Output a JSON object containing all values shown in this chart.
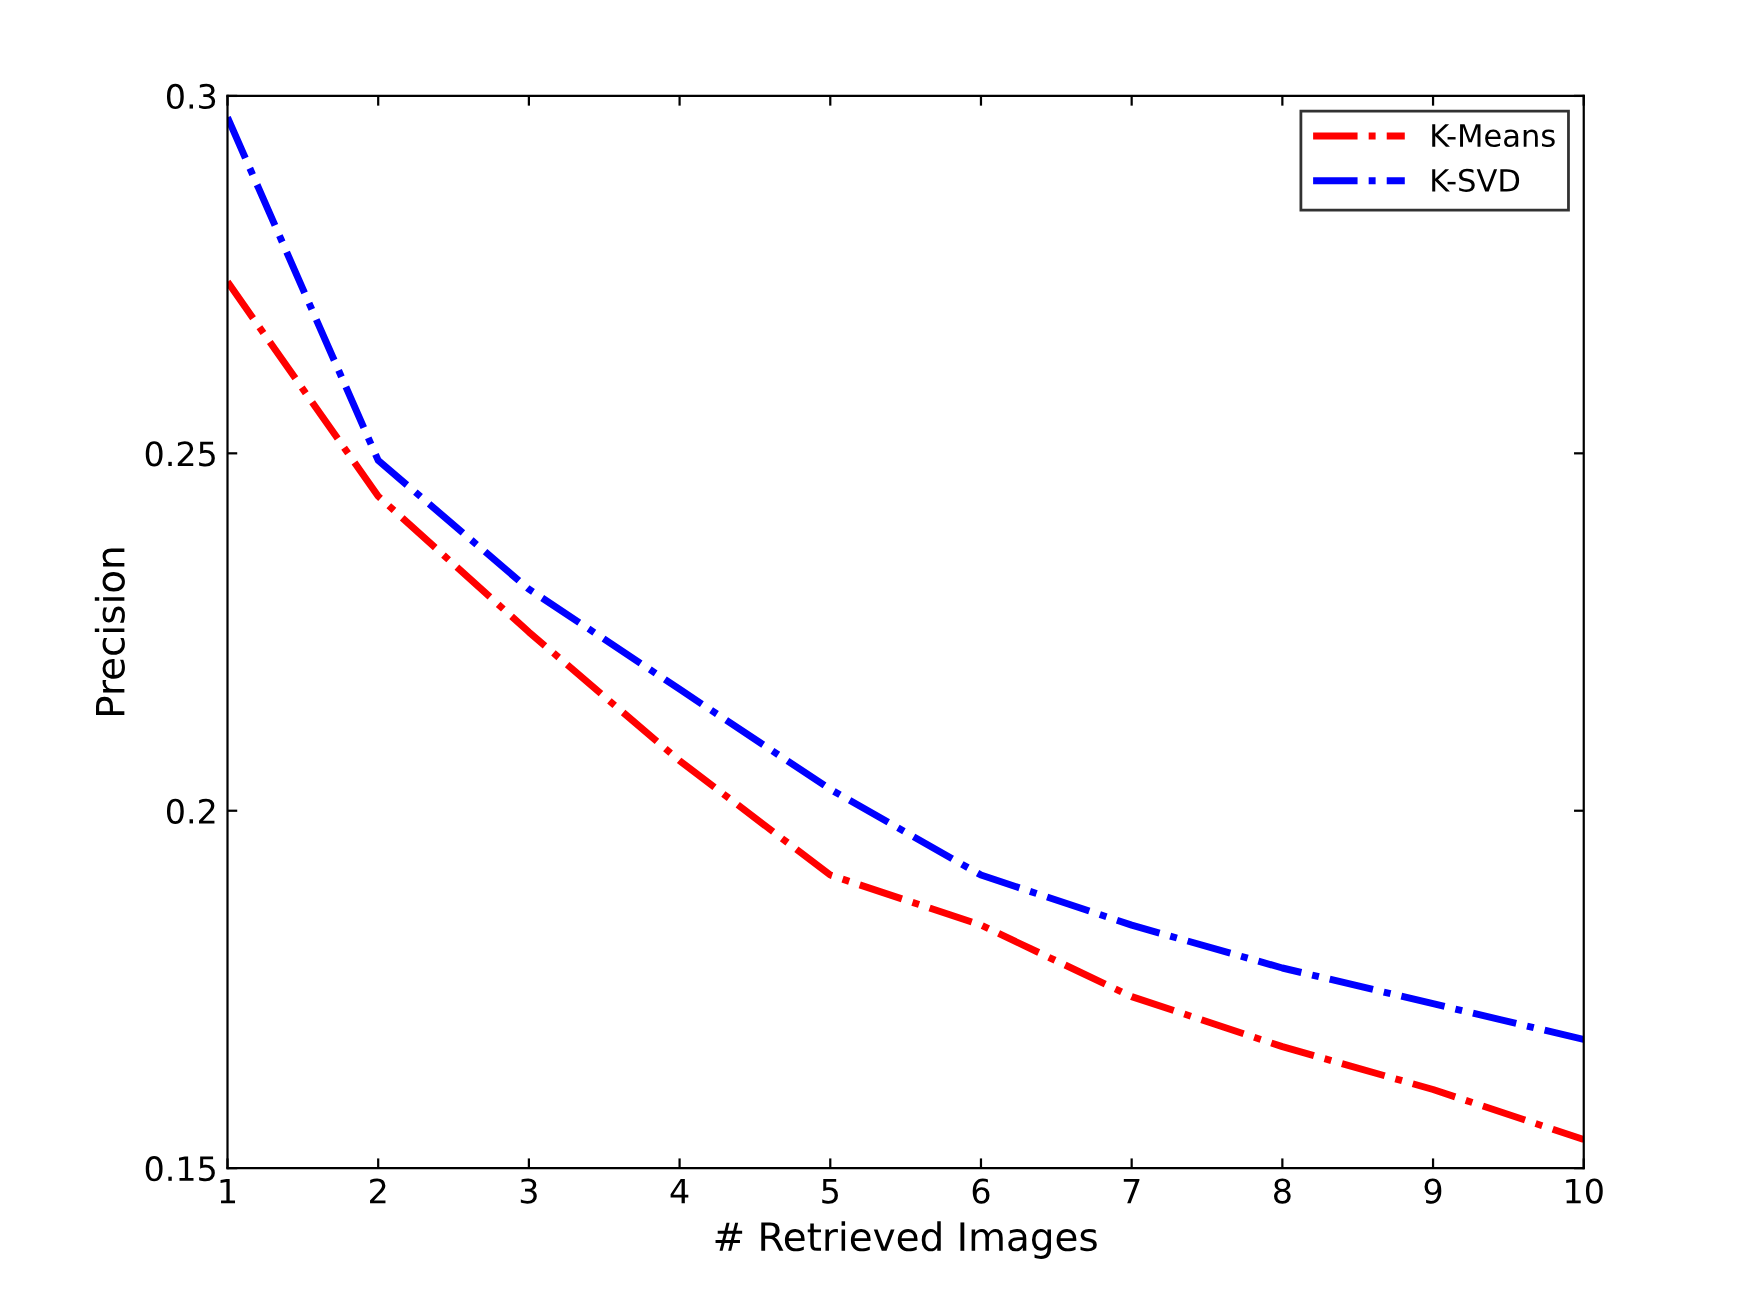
{
  "chart_data": {
    "type": "line",
    "xlabel": "# Retrieved Images",
    "ylabel": "Precision",
    "x": [
      1,
      2,
      3,
      4,
      5,
      6,
      7,
      8,
      9,
      10
    ],
    "series": [
      {
        "name": "K-Means",
        "color": "#ff0000",
        "values": [
          0.274,
          0.244,
          0.225,
          0.207,
          0.191,
          0.184,
          0.174,
          0.167,
          0.161,
          0.154
        ]
      },
      {
        "name": "K-SVD",
        "color": "#0000ff",
        "values": [
          0.297,
          0.249,
          0.231,
          0.217,
          0.203,
          0.191,
          0.184,
          0.178,
          0.173,
          0.168
        ]
      }
    ],
    "xlim": [
      1,
      10
    ],
    "xticks": [
      1,
      2,
      3,
      4,
      5,
      6,
      7,
      8,
      9,
      10
    ],
    "ylim": [
      0.15,
      0.3
    ],
    "yticks": [
      {
        "value": 0.15,
        "label": "0.15"
      },
      {
        "value": 0.2,
        "label": "0.2"
      },
      {
        "value": 0.25,
        "label": "0.25"
      },
      {
        "value": 0.3,
        "label": "0.3"
      }
    ],
    "grid": false,
    "legend": "top right",
    "line_style": "dashdot",
    "marker": "none"
  }
}
